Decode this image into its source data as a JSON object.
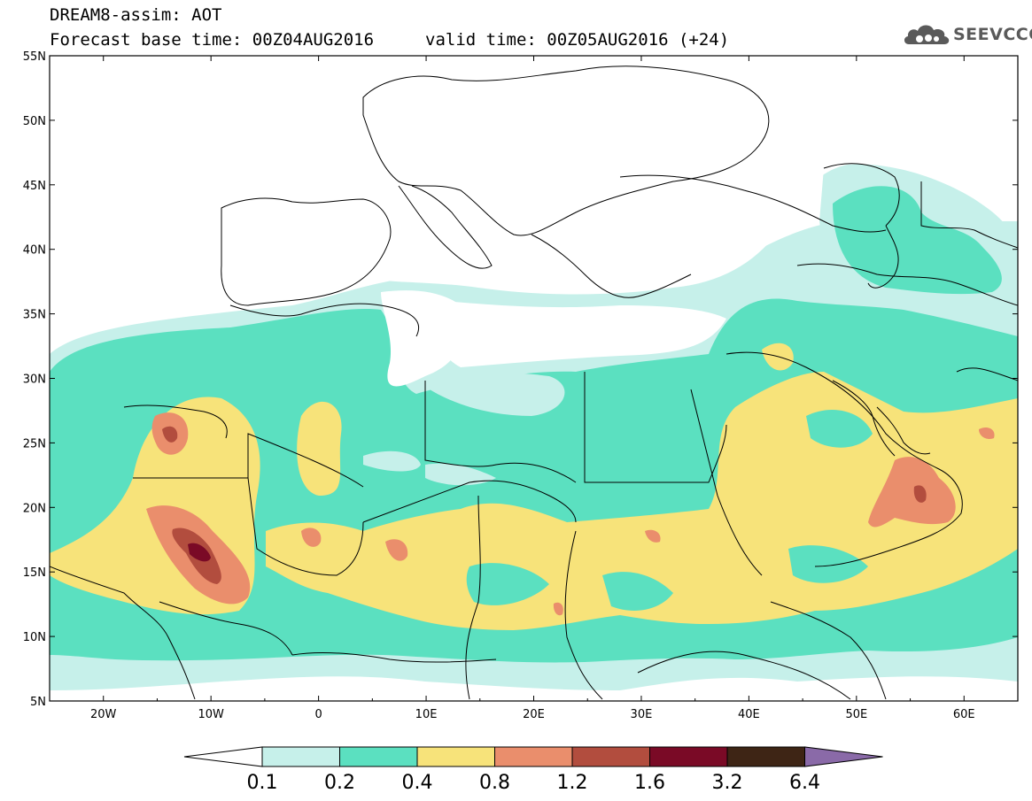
{
  "header": {
    "model_title": "DREAM8-assim: AOT",
    "base_time": "Forecast base time: 00Z04AUG2016",
    "valid_time": "valid time: 00Z05AUG2016 (+24)"
  },
  "logo": {
    "text": "SEEVCCC",
    "icon": "cloud-icon"
  },
  "map": {
    "lat_labels": [
      "55N",
      "50N",
      "45N",
      "40N",
      "35N",
      "30N",
      "25N",
      "20N",
      "15N",
      "10N",
      "5N"
    ],
    "lon_labels": [
      "20W",
      "10W",
      "0",
      "10E",
      "20E",
      "30E",
      "40E",
      "50E",
      "60E"
    ],
    "lat_range": [
      5,
      55
    ],
    "lon_range": [
      -25,
      65
    ]
  },
  "colorbar": {
    "levels": [
      "0.1",
      "0.2",
      "0.4",
      "0.8",
      "1.2",
      "1.6",
      "3.2",
      "6.4"
    ],
    "colors": [
      "#ffffff",
      "#c6f0ea",
      "#5be0c0",
      "#f7e37a",
      "#ea8e6c",
      "#b24d3e",
      "#7a0a26",
      "#3e2515",
      "#8a6aa8"
    ]
  }
}
